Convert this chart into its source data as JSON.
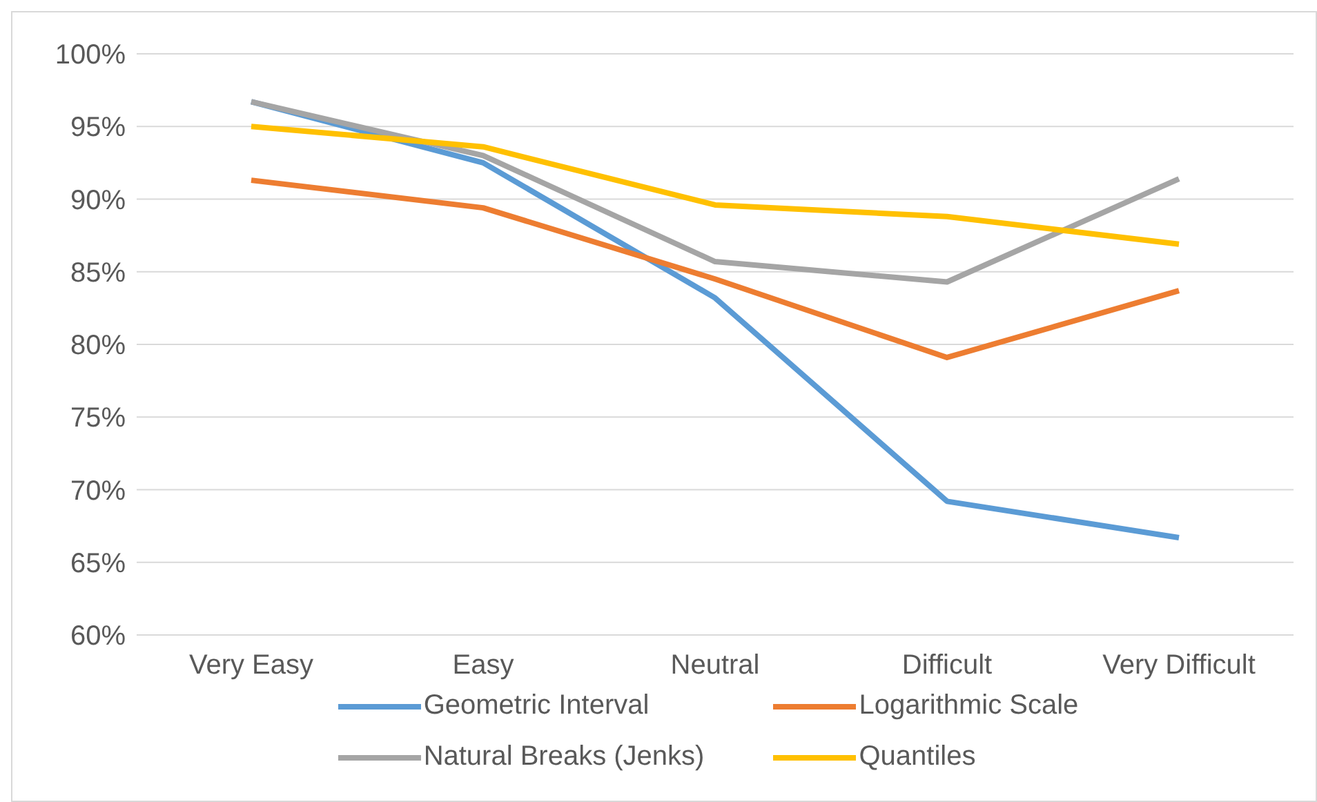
{
  "chart_data": {
    "type": "line",
    "categories": [
      "Very Easy",
      "Easy",
      "Neutral",
      "Difficult",
      "Very Difficult"
    ],
    "series": [
      {
        "name": "Geometric Interval",
        "color": "#5b9bd5",
        "values": [
          96.7,
          92.5,
          83.2,
          69.2,
          66.7
        ]
      },
      {
        "name": "Logarithmic Scale",
        "color": "#ed7d31",
        "values": [
          91.3,
          89.4,
          84.5,
          79.1,
          83.7
        ]
      },
      {
        "name": "Natural Breaks (Jenks)",
        "color": "#a5a5a5",
        "values": [
          96.7,
          93.0,
          85.7,
          84.3,
          91.4
        ]
      },
      {
        "name": "Quantiles",
        "color": "#ffc000",
        "values": [
          95.0,
          93.6,
          89.6,
          88.8,
          86.9
        ]
      }
    ],
    "ylim": [
      60,
      100
    ],
    "yticks": [
      {
        "value": 60,
        "label": "60%"
      },
      {
        "value": 65,
        "label": "65%"
      },
      {
        "value": 70,
        "label": "70%"
      },
      {
        "value": 75,
        "label": "75%"
      },
      {
        "value": 80,
        "label": "80%"
      },
      {
        "value": 85,
        "label": "85%"
      },
      {
        "value": 90,
        "label": "90%"
      },
      {
        "value": 95,
        "label": "95%"
      },
      {
        "value": 100,
        "label": "100%"
      }
    ],
    "grid": "y",
    "legend": "bottom",
    "marker": "none",
    "line_style": "solid"
  }
}
